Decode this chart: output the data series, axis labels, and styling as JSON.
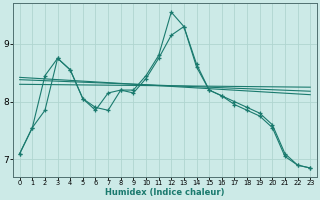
{
  "title": "",
  "xlabel": "Humidex (Indice chaleur)",
  "background_color": "#cceae7",
  "grid_color": "#b0d5d0",
  "line_color": "#1a7a6e",
  "xlim": [
    -0.5,
    23.5
  ],
  "ylim": [
    6.7,
    9.7
  ],
  "yticks": [
    7,
    8,
    9
  ],
  "xticks": [
    0,
    1,
    2,
    3,
    4,
    5,
    6,
    7,
    8,
    9,
    10,
    11,
    12,
    13,
    14,
    15,
    16,
    17,
    18,
    19,
    20,
    21,
    22,
    23
  ],
  "lines_with_markers": [
    {
      "x": [
        0,
        1,
        2,
        3,
        4,
        5,
        6,
        7,
        8,
        9,
        10,
        11,
        12,
        13,
        14,
        15,
        16,
        17,
        18,
        19,
        20,
        21,
        22,
        23
      ],
      "y": [
        7.1,
        7.55,
        7.85,
        8.75,
        8.55,
        8.05,
        7.9,
        7.85,
        8.2,
        8.2,
        8.45,
        8.8,
        9.55,
        9.3,
        8.65,
        8.2,
        8.1,
        8.0,
        7.9,
        7.8,
        7.6,
        7.1,
        6.9,
        6.85
      ]
    },
    {
      "x": [
        0,
        1,
        2,
        3,
        4,
        5,
        6,
        7,
        8,
        9,
        10,
        11,
        12,
        13,
        14,
        15,
        16,
        17,
        18,
        19,
        20,
        21,
        22,
        23
      ],
      "y": [
        7.1,
        7.55,
        8.45,
        8.75,
        8.55,
        8.05,
        7.85,
        8.15,
        8.2,
        8.15,
        8.4,
        8.75,
        9.15,
        9.3,
        8.6,
        8.2,
        8.1,
        7.95,
        7.85,
        7.75,
        7.55,
        7.05,
        6.9,
        6.85
      ]
    }
  ],
  "lines_straight": [
    {
      "x": [
        0,
        23
      ],
      "y": [
        8.42,
        8.12
      ]
    },
    {
      "x": [
        0,
        23
      ],
      "y": [
        8.38,
        8.18
      ]
    },
    {
      "x": [
        0,
        23
      ],
      "y": [
        8.3,
        8.25
      ]
    }
  ]
}
